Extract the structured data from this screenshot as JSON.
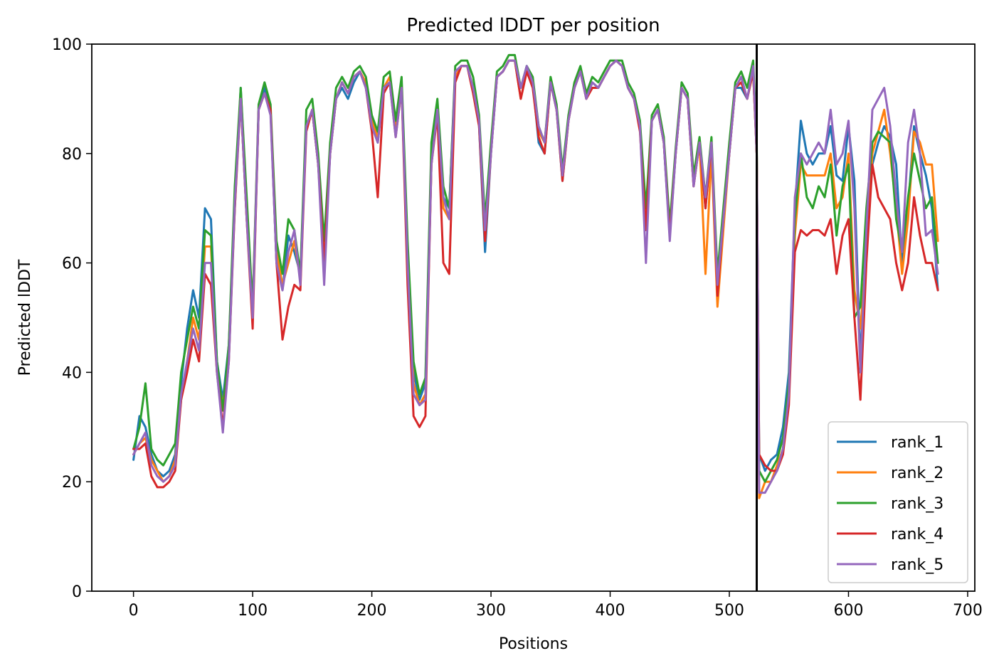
{
  "chart_data": {
    "type": "line",
    "title": "Predicted lDDT per position",
    "xlabel": "Positions",
    "ylabel": "Predicted lDDT",
    "xlim": [
      -35,
      706
    ],
    "ylim": [
      0,
      100
    ],
    "xticks": [
      0,
      100,
      200,
      300,
      400,
      500,
      600,
      700
    ],
    "yticks": [
      0,
      20,
      40,
      60,
      80,
      100
    ],
    "chain_break": 523,
    "legend_position": "lower-right",
    "colors": [
      "#1f77b4",
      "#ff7f0e",
      "#2ca02c",
      "#d62728",
      "#9467bd"
    ],
    "x": [
      0,
      5,
      10,
      15,
      20,
      25,
      30,
      35,
      40,
      45,
      50,
      55,
      60,
      65,
      70,
      75,
      80,
      85,
      90,
      95,
      100,
      105,
      110,
      115,
      120,
      125,
      130,
      135,
      140,
      145,
      150,
      155,
      160,
      165,
      170,
      175,
      180,
      185,
      190,
      195,
      200,
      205,
      210,
      215,
      220,
      225,
      230,
      235,
      240,
      245,
      250,
      255,
      260,
      265,
      270,
      275,
      280,
      285,
      290,
      295,
      300,
      305,
      310,
      315,
      320,
      325,
      330,
      335,
      340,
      345,
      350,
      355,
      360,
      365,
      370,
      375,
      380,
      385,
      390,
      395,
      400,
      405,
      410,
      415,
      420,
      425,
      430,
      435,
      440,
      445,
      450,
      455,
      460,
      465,
      470,
      475,
      480,
      485,
      490,
      495,
      500,
      505,
      510,
      515,
      520,
      523,
      525,
      530,
      535,
      540,
      545,
      550,
      555,
      560,
      565,
      570,
      575,
      580,
      585,
      590,
      595,
      600,
      605,
      610,
      615,
      620,
      625,
      630,
      635,
      640,
      645,
      650,
      655,
      660,
      665,
      670,
      675
    ],
    "series": [
      {
        "name": "rank_1",
        "values": [
          24,
          32,
          30,
          25,
          22,
          21,
          22,
          25,
          38,
          48,
          55,
          50,
          70,
          68,
          42,
          35,
          45,
          70,
          92,
          70,
          50,
          88,
          92,
          88,
          60,
          55,
          65,
          62,
          58,
          85,
          88,
          78,
          62,
          80,
          90,
          92,
          90,
          93,
          95,
          92,
          85,
          82,
          92,
          93,
          84,
          92,
          60,
          40,
          35,
          38,
          80,
          88,
          72,
          70,
          95,
          96,
          96,
          92,
          85,
          62,
          80,
          94,
          95,
          97,
          97,
          92,
          96,
          93,
          82,
          80,
          93,
          88,
          75,
          86,
          92,
          95,
          90,
          93,
          92,
          94,
          96,
          97,
          96,
          92,
          90,
          85,
          67,
          86,
          88,
          82,
          65,
          80,
          92,
          90,
          75,
          82,
          70,
          82,
          55,
          68,
          80,
          92,
          92,
          90,
          95,
          80,
          25,
          22,
          24,
          25,
          30,
          40,
          70,
          86,
          80,
          78,
          80,
          80,
          85,
          76,
          75,
          85,
          75,
          42,
          65,
          78,
          82,
          85,
          83,
          78,
          60,
          70,
          85,
          80,
          76,
          70,
          55
        ],
        "label": ""
      },
      {
        "name": "rank_2",
        "values": [
          25,
          27,
          28,
          24,
          22,
          20,
          21,
          24,
          35,
          42,
          50,
          46,
          63,
          63,
          40,
          34,
          43,
          72,
          90,
          68,
          52,
          88,
          91,
          88,
          62,
          56,
          60,
          64,
          57,
          85,
          88,
          78,
          62,
          80,
          90,
          93,
          91,
          94,
          95,
          93,
          86,
          83,
          92,
          94,
          85,
          92,
          62,
          38,
          34,
          36,
          78,
          88,
          70,
          68,
          94,
          96,
          96,
          92,
          86,
          64,
          81,
          94,
          95,
          97,
          97,
          90,
          95,
          93,
          84,
          82,
          93,
          88,
          76,
          86,
          92,
          95,
          90,
          92,
          92,
          94,
          96,
          97,
          96,
          92,
          90,
          85,
          68,
          86,
          88,
          82,
          66,
          80,
          92,
          90,
          74,
          82,
          58,
          80,
          52,
          66,
          80,
          92,
          94,
          90,
          95,
          80,
          17,
          20,
          20,
          23,
          26,
          35,
          65,
          78,
          76,
          76,
          76,
          76,
          80,
          70,
          72,
          80,
          55,
          48,
          62,
          80,
          84,
          88,
          80,
          70,
          58,
          68,
          84,
          82,
          78,
          78,
          64
        ]
      },
      {
        "name": "rank_3",
        "values": [
          26,
          30,
          38,
          26,
          24,
          23,
          25,
          27,
          40,
          46,
          52,
          48,
          66,
          65,
          42,
          33,
          45,
          74,
          92,
          72,
          52,
          89,
          93,
          89,
          64,
          58,
          68,
          66,
          58,
          88,
          90,
          80,
          64,
          82,
          92,
          94,
          92,
          95,
          96,
          94,
          87,
          84,
          94,
          95,
          86,
          94,
          64,
          42,
          36,
          39,
          82,
          90,
          74,
          70,
          96,
          97,
          97,
          94,
          87,
          68,
          82,
          95,
          96,
          98,
          98,
          92,
          96,
          94,
          85,
          82,
          94,
          89,
          77,
          87,
          93,
          96,
          91,
          94,
          93,
          95,
          97,
          97,
          97,
          93,
          91,
          86,
          70,
          87,
          89,
          83,
          67,
          81,
          93,
          91,
          76,
          83,
          72,
          83,
          58,
          70,
          82,
          93,
          95,
          92,
          97,
          82,
          22,
          20,
          22,
          24,
          28,
          38,
          68,
          80,
          72,
          70,
          74,
          72,
          78,
          65,
          74,
          78,
          50,
          52,
          70,
          82,
          84,
          83,
          82,
          68,
          62,
          72,
          80,
          75,
          70,
          72,
          60
        ]
      },
      {
        "name": "rank_4",
        "values": [
          26,
          26,
          27,
          21,
          19,
          19,
          20,
          22,
          35,
          40,
          46,
          42,
          58,
          56,
          40,
          30,
          42,
          70,
          90,
          68,
          48,
          88,
          91,
          88,
          60,
          46,
          52,
          56,
          55,
          84,
          88,
          78,
          60,
          80,
          90,
          93,
          91,
          94,
          95,
          92,
          84,
          72,
          91,
          93,
          83,
          92,
          56,
          32,
          30,
          32,
          78,
          87,
          60,
          58,
          93,
          96,
          96,
          91,
          85,
          64,
          80,
          94,
          95,
          97,
          97,
          90,
          95,
          92,
          83,
          80,
          93,
          88,
          75,
          86,
          92,
          95,
          90,
          92,
          92,
          94,
          96,
          97,
          96,
          92,
          90,
          84,
          66,
          86,
          88,
          82,
          65,
          80,
          92,
          90,
          74,
          82,
          70,
          82,
          54,
          68,
          80,
          92,
          93,
          90,
          95,
          80,
          25,
          23,
          22,
          22,
          25,
          34,
          62,
          66,
          65,
          66,
          66,
          65,
          68,
          58,
          65,
          68,
          50,
          35,
          60,
          78,
          72,
          70,
          68,
          60,
          55,
          60,
          72,
          65,
          60,
          60,
          55
        ]
      },
      {
        "name": "rank_5",
        "values": [
          25,
          27,
          29,
          23,
          21,
          20,
          21,
          23,
          36,
          42,
          48,
          44,
          60,
          60,
          40,
          29,
          42,
          71,
          90,
          68,
          50,
          88,
          91,
          87,
          60,
          55,
          62,
          66,
          56,
          85,
          88,
          78,
          56,
          80,
          90,
          93,
          91,
          94,
          95,
          92,
          85,
          82,
          92,
          93,
          83,
          92,
          60,
          36,
          34,
          35,
          78,
          88,
          72,
          68,
          95,
          96,
          96,
          92,
          86,
          66,
          80,
          94,
          95,
          97,
          97,
          92,
          96,
          93,
          85,
          82,
          93,
          88,
          76,
          86,
          92,
          95,
          90,
          93,
          92,
          94,
          96,
          97,
          96,
          92,
          90,
          85,
          60,
          86,
          88,
          82,
          64,
          80,
          92,
          90,
          74,
          82,
          72,
          82,
          56,
          68,
          80,
          92,
          94,
          90,
          96,
          80,
          18,
          18,
          20,
          22,
          26,
          36,
          72,
          80,
          78,
          80,
          82,
          80,
          88,
          78,
          80,
          86,
          70,
          40,
          66,
          88,
          90,
          92,
          85,
          72,
          62,
          82,
          88,
          80,
          65,
          66,
          58
        ]
      }
    ]
  }
}
